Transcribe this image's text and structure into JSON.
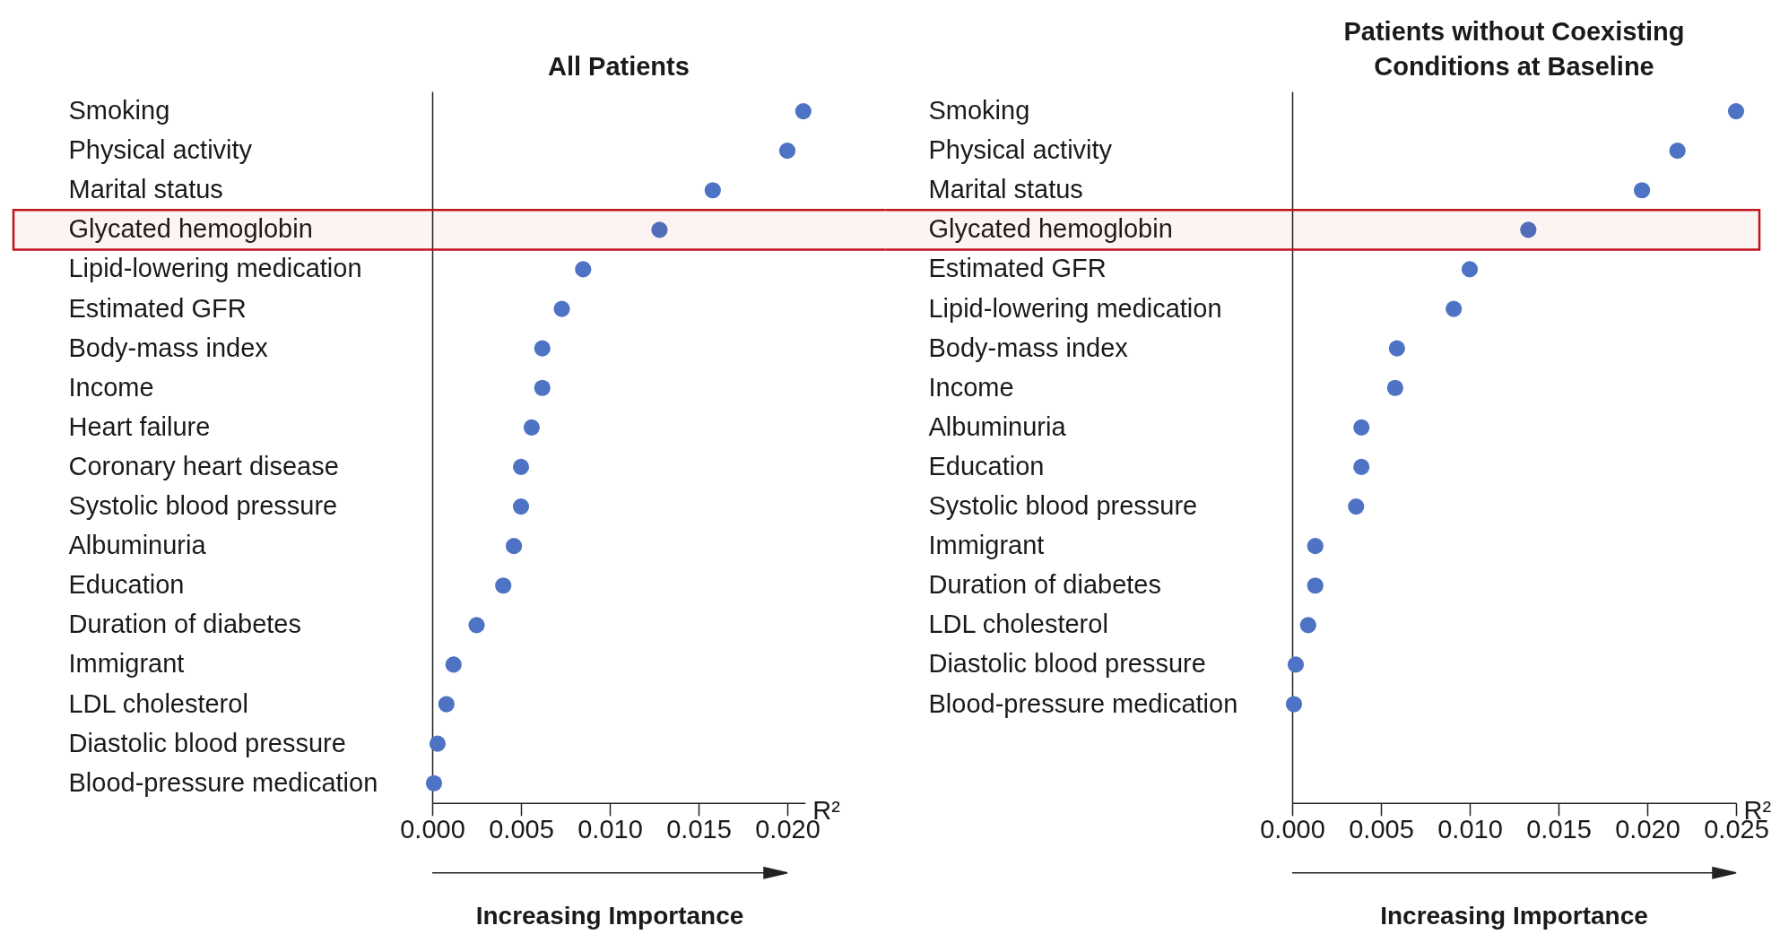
{
  "chart_data": [
    {
      "type": "scatter",
      "title": "All Patients",
      "orientation": "horizontal",
      "marker": "circle",
      "color": "#4e72c4",
      "categories": [
        "Smoking",
        "Physical activity",
        "Marital status",
        "Glycated hemoglobin",
        "Lipid-lowering medication",
        "Estimated GFR",
        "Body-mass index",
        "Income",
        "Heart failure",
        "Coronary heart disease",
        "Systolic blood pressure",
        "Albuminuria",
        "Education",
        "Duration of diabetes",
        "Immigrant",
        "LDL cholesterol",
        "Diastolic blood pressure",
        "Blood-pressure medication"
      ],
      "values": [
        0.0209,
        0.02,
        0.0158,
        0.0128,
        0.0085,
        0.0073,
        0.0062,
        0.0062,
        0.0056,
        0.005,
        0.005,
        0.0046,
        0.004,
        0.0025,
        0.0012,
        0.0008,
        0.0003,
        0.0001
      ],
      "xlabel": "R²",
      "xlim": [
        0,
        0.021
      ],
      "xticks": [
        {
          "value": 0,
          "label": "0.000"
        },
        0.005,
        {
          "value": 0.01,
          "label": "0.010"
        },
        0.015,
        {
          "value": 0.02,
          "label": "0.020"
        }
      ],
      "annotations": [
        "Increasing Importance"
      ],
      "bands": [
        {
          "axis": "y",
          "from": "Glycated hemoglobin",
          "to": "Glycated hemoglobin",
          "color": "#c0141c"
        }
      ]
    },
    {
      "type": "scatter",
      "title": "Patients without Coexisting\nConditions at Baseline",
      "orientation": "horizontal",
      "marker": "circle",
      "color": "#4e72c4",
      "categories": [
        "Smoking",
        "Physical activity",
        "Marital status",
        "Glycated hemoglobin",
        "Estimated GFR",
        "Lipid-lowering medication",
        "Body-mass index",
        "Income",
        "Albuminuria",
        "Education",
        "Systolic blood pressure",
        "Immigrant",
        "Duration of diabetes",
        "LDL cholesterol",
        "Diastolic blood pressure",
        "Blood-pressure medication",
        null,
        null
      ],
      "values": [
        0.025,
        0.0217,
        0.0197,
        0.0133,
        0.01,
        0.0091,
        0.0059,
        0.0058,
        0.0039,
        0.0039,
        0.0036,
        0.0013,
        0.0013,
        0.0009,
        0.0002,
        0.0001,
        null,
        null
      ],
      "xlabel": "R²",
      "xlim": [
        0,
        0.025
      ],
      "xticks": [
        {
          "value": 0,
          "label": "0.000"
        },
        0.005,
        {
          "value": 0.01,
          "label": "0.010"
        },
        0.015,
        {
          "value": 0.02,
          "label": "0.020"
        },
        0.025
      ],
      "annotations": [
        "Increasing Importance"
      ],
      "bands": [
        {
          "axis": "y",
          "from": "Glycated hemoglobin",
          "to": "Glycated hemoglobin",
          "color": "#c0141c"
        }
      ]
    }
  ]
}
